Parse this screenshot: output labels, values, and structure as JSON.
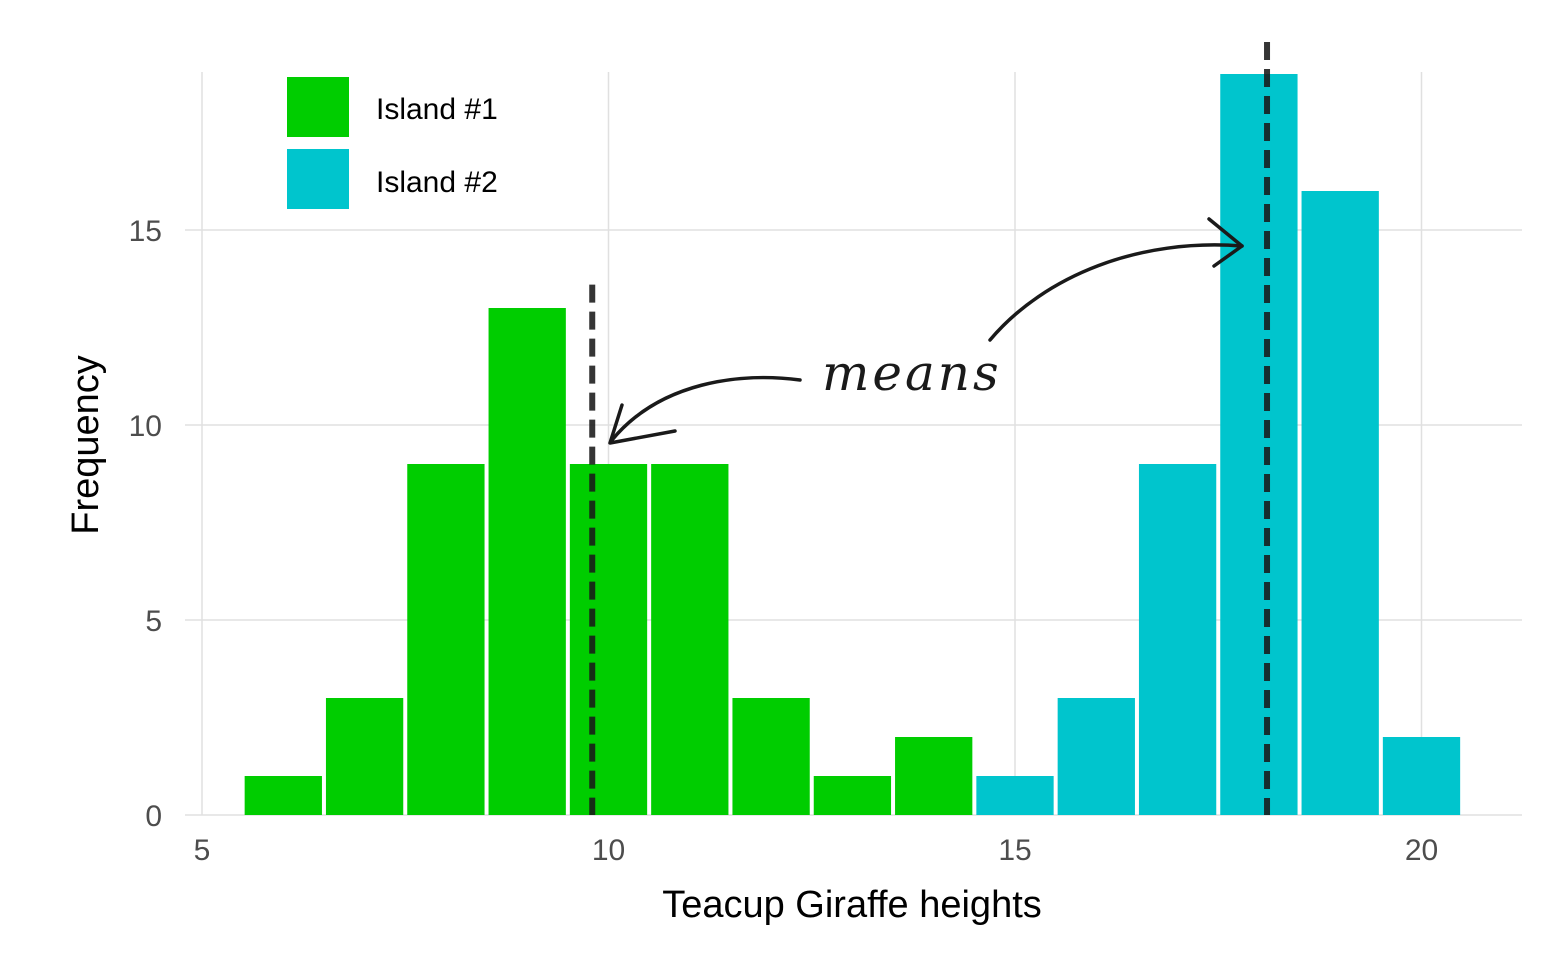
{
  "chart_data": {
    "type": "bar",
    "title": "",
    "xlabel": "Teacup Giraffe heights",
    "ylabel": "Frequency",
    "xlim": [
      5,
      21
    ],
    "ylim": [
      0,
      19
    ],
    "x_ticks": [
      5,
      10,
      15,
      20
    ],
    "y_ticks": [
      0,
      5,
      10,
      15
    ],
    "grid": true,
    "legend_position": "top-left",
    "bin_width": 1,
    "series": [
      {
        "name": "Island #1",
        "color": "#00CD00",
        "bins": [
          6,
          7,
          8,
          9,
          10,
          11,
          12,
          13,
          14
        ],
        "values": [
          1,
          3,
          9,
          13,
          9,
          9,
          3,
          1,
          2
        ],
        "mean": 9.8
      },
      {
        "name": "Island #2",
        "color": "#00C5CD",
        "bins": [
          15,
          16,
          17,
          18,
          19,
          20
        ],
        "values": [
          1,
          3,
          9,
          19,
          16,
          2
        ],
        "mean": 18.1
      }
    ],
    "annotation": "means"
  }
}
